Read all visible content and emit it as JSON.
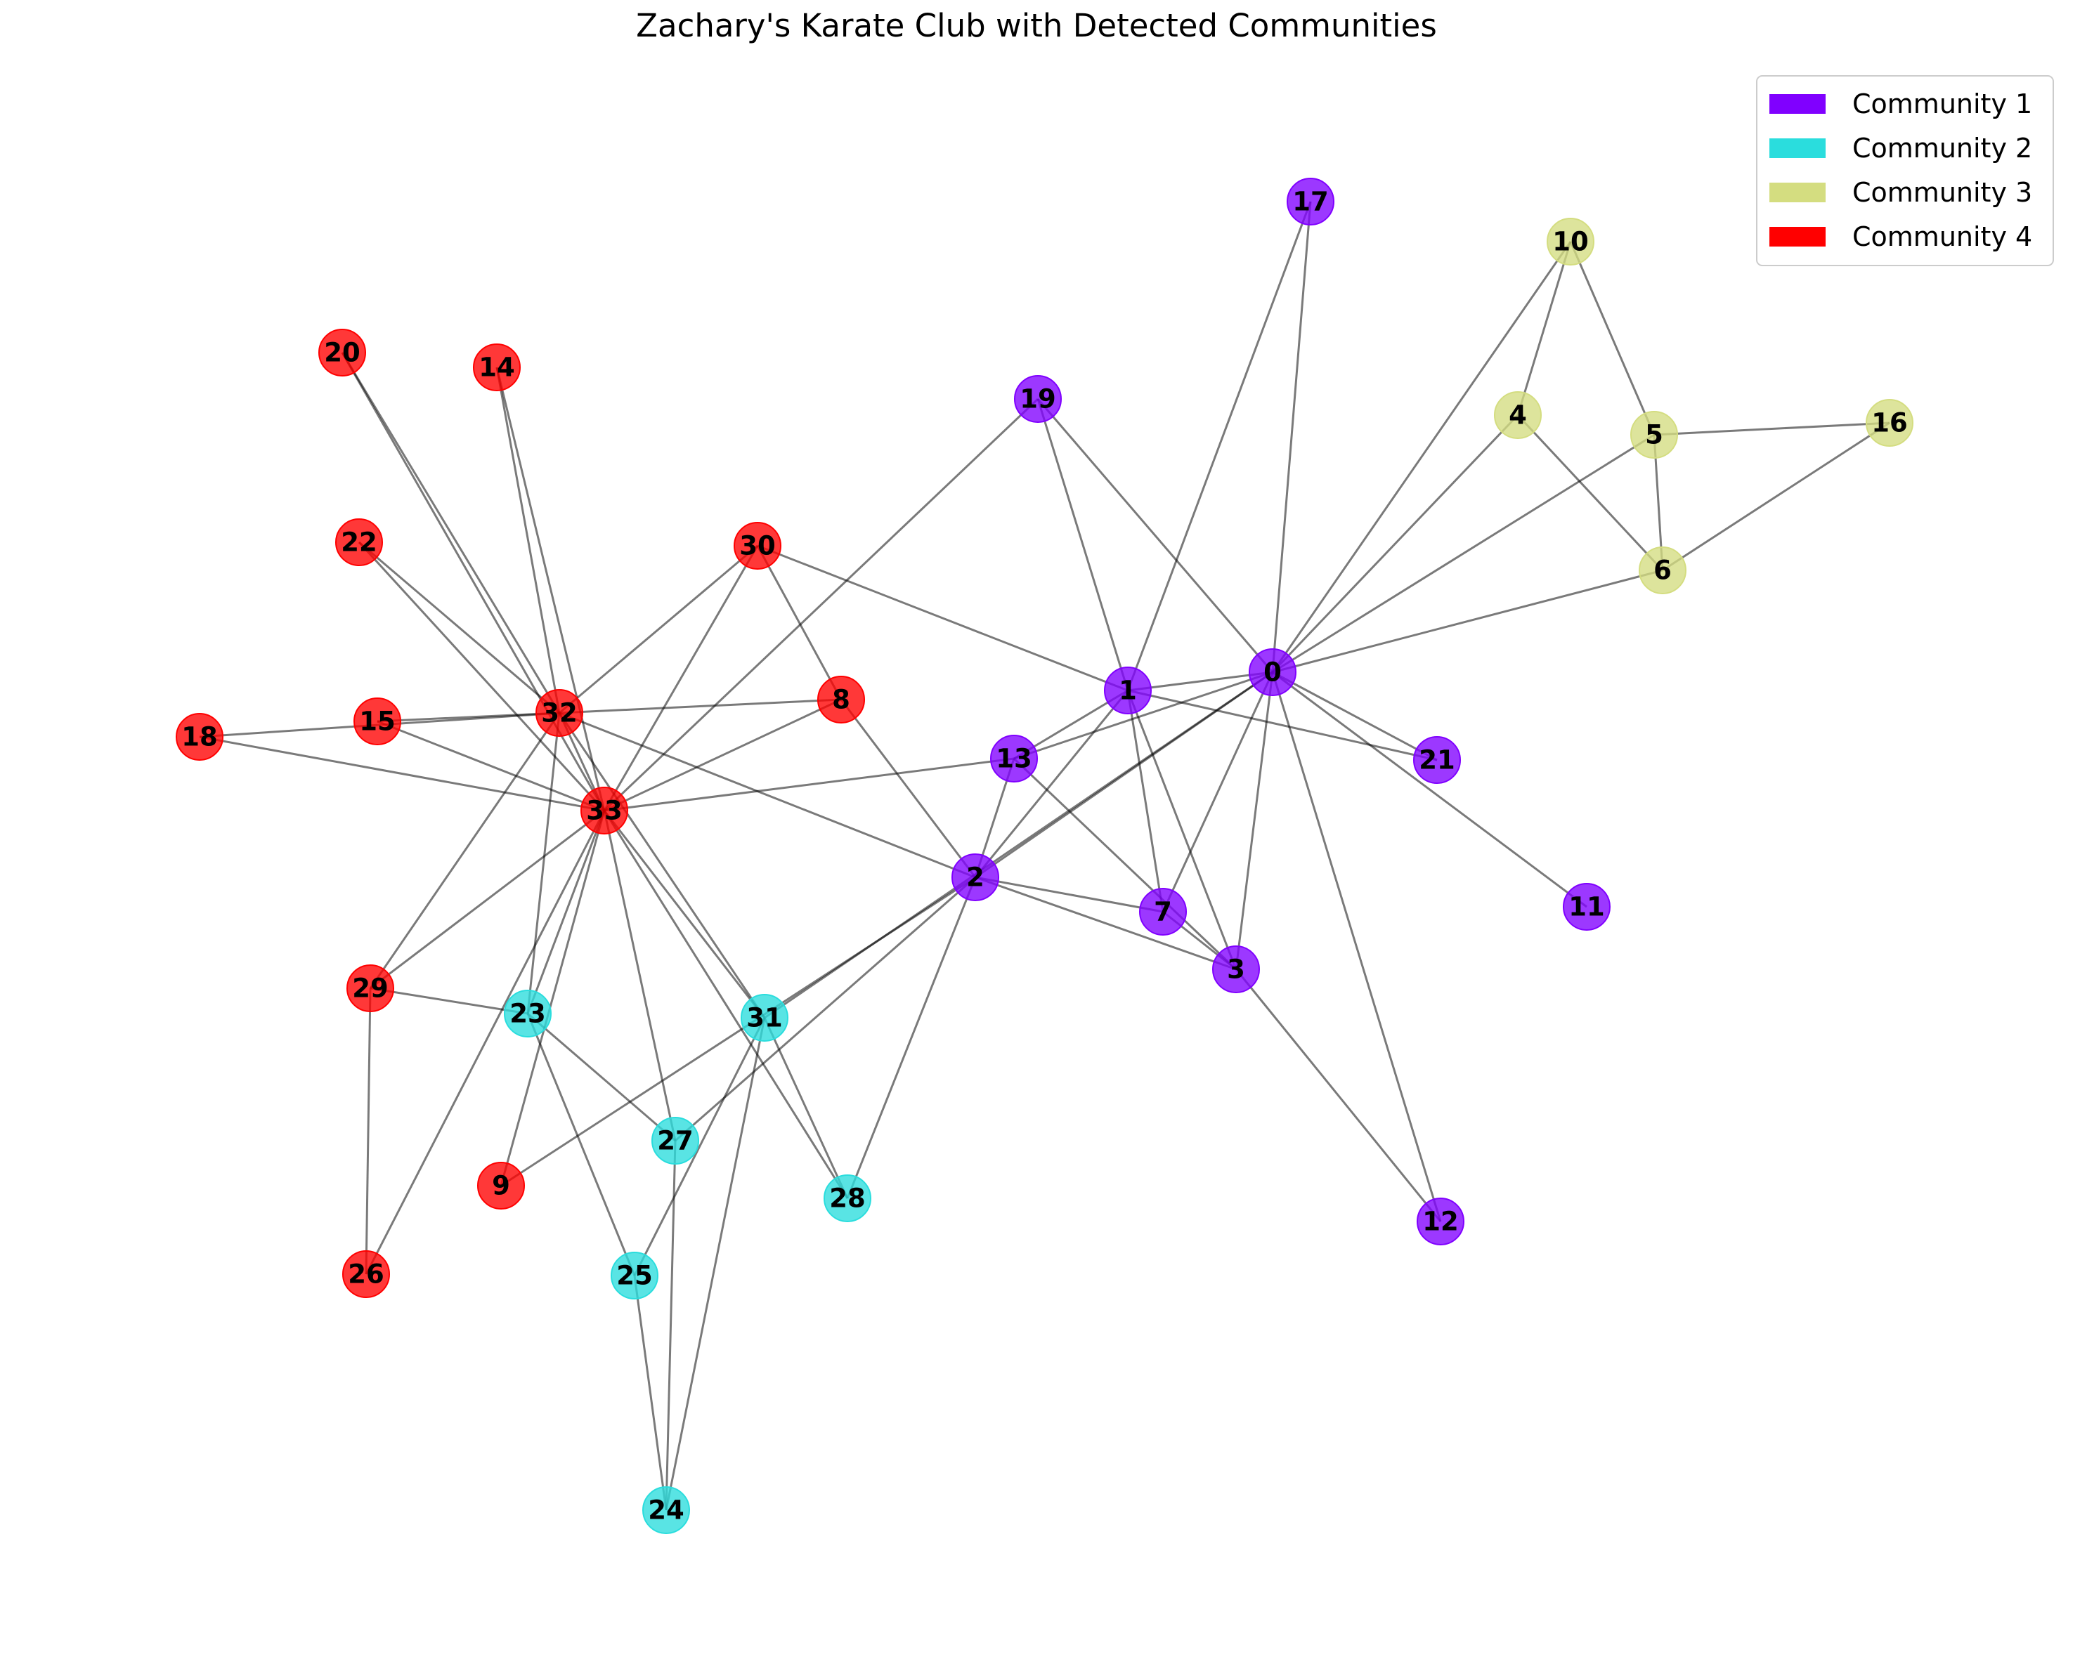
{
  "title": "Zachary's Karate Club with Detected Communities",
  "communities": [
    {
      "id": 1,
      "label": "Community 1",
      "color": "#8000ff"
    },
    {
      "id": 2,
      "label": "Community 2",
      "color": "#2adddd"
    },
    {
      "id": 3,
      "label": "Community 3",
      "color": "#d4dd80"
    },
    {
      "id": 4,
      "label": "Community 4",
      "color": "#ff0000"
    }
  ],
  "nodes": [
    {
      "id": "0",
      "community": 1
    },
    {
      "id": "1",
      "community": 1
    },
    {
      "id": "2",
      "community": 1
    },
    {
      "id": "3",
      "community": 1
    },
    {
      "id": "4",
      "community": 3
    },
    {
      "id": "5",
      "community": 3
    },
    {
      "id": "6",
      "community": 3
    },
    {
      "id": "7",
      "community": 1
    },
    {
      "id": "8",
      "community": 4
    },
    {
      "id": "9",
      "community": 4
    },
    {
      "id": "10",
      "community": 3
    },
    {
      "id": "11",
      "community": 1
    },
    {
      "id": "12",
      "community": 1
    },
    {
      "id": "13",
      "community": 1
    },
    {
      "id": "14",
      "community": 4
    },
    {
      "id": "15",
      "community": 4
    },
    {
      "id": "16",
      "community": 3
    },
    {
      "id": "17",
      "community": 1
    },
    {
      "id": "18",
      "community": 4
    },
    {
      "id": "19",
      "community": 1
    },
    {
      "id": "20",
      "community": 4
    },
    {
      "id": "21",
      "community": 1
    },
    {
      "id": "22",
      "community": 4
    },
    {
      "id": "23",
      "community": 2
    },
    {
      "id": "24",
      "community": 2
    },
    {
      "id": "25",
      "community": 2
    },
    {
      "id": "26",
      "community": 4
    },
    {
      "id": "27",
      "community": 2
    },
    {
      "id": "28",
      "community": 2
    },
    {
      "id": "29",
      "community": 4
    },
    {
      "id": "30",
      "community": 4
    },
    {
      "id": "31",
      "community": 2
    },
    {
      "id": "32",
      "community": 4
    },
    {
      "id": "33",
      "community": 4
    }
  ],
  "edges": [
    [
      "0",
      "1"
    ],
    [
      "0",
      "2"
    ],
    [
      "0",
      "3"
    ],
    [
      "0",
      "4"
    ],
    [
      "0",
      "5"
    ],
    [
      "0",
      "6"
    ],
    [
      "0",
      "7"
    ],
    [
      "0",
      "10"
    ],
    [
      "0",
      "11"
    ],
    [
      "0",
      "12"
    ],
    [
      "0",
      "13"
    ],
    [
      "0",
      "17"
    ],
    [
      "0",
      "19"
    ],
    [
      "0",
      "21"
    ],
    [
      "0",
      "31"
    ],
    [
      "1",
      "2"
    ],
    [
      "1",
      "3"
    ],
    [
      "1",
      "7"
    ],
    [
      "1",
      "13"
    ],
    [
      "1",
      "17"
    ],
    [
      "1",
      "19"
    ],
    [
      "1",
      "21"
    ],
    [
      "1",
      "30"
    ],
    [
      "2",
      "3"
    ],
    [
      "2",
      "7"
    ],
    [
      "2",
      "8"
    ],
    [
      "2",
      "9"
    ],
    [
      "2",
      "13"
    ],
    [
      "2",
      "27"
    ],
    [
      "2",
      "28"
    ],
    [
      "2",
      "32"
    ],
    [
      "3",
      "7"
    ],
    [
      "3",
      "12"
    ],
    [
      "3",
      "13"
    ],
    [
      "4",
      "6"
    ],
    [
      "4",
      "10"
    ],
    [
      "5",
      "6"
    ],
    [
      "5",
      "10"
    ],
    [
      "5",
      "16"
    ],
    [
      "6",
      "16"
    ],
    [
      "8",
      "30"
    ],
    [
      "8",
      "32"
    ],
    [
      "8",
      "33"
    ],
    [
      "9",
      "33"
    ],
    [
      "13",
      "33"
    ],
    [
      "14",
      "32"
    ],
    [
      "14",
      "33"
    ],
    [
      "15",
      "32"
    ],
    [
      "15",
      "33"
    ],
    [
      "18",
      "32"
    ],
    [
      "18",
      "33"
    ],
    [
      "19",
      "33"
    ],
    [
      "20",
      "32"
    ],
    [
      "20",
      "33"
    ],
    [
      "22",
      "32"
    ],
    [
      "22",
      "33"
    ],
    [
      "23",
      "25"
    ],
    [
      "23",
      "27"
    ],
    [
      "23",
      "29"
    ],
    [
      "23",
      "32"
    ],
    [
      "23",
      "33"
    ],
    [
      "24",
      "25"
    ],
    [
      "24",
      "27"
    ],
    [
      "24",
      "31"
    ],
    [
      "25",
      "31"
    ],
    [
      "26",
      "29"
    ],
    [
      "26",
      "33"
    ],
    [
      "27",
      "33"
    ],
    [
      "28",
      "31"
    ],
    [
      "28",
      "33"
    ],
    [
      "29",
      "32"
    ],
    [
      "29",
      "33"
    ],
    [
      "30",
      "32"
    ],
    [
      "30",
      "33"
    ],
    [
      "31",
      "32"
    ],
    [
      "31",
      "33"
    ],
    [
      "32",
      "33"
    ]
  ]
}
